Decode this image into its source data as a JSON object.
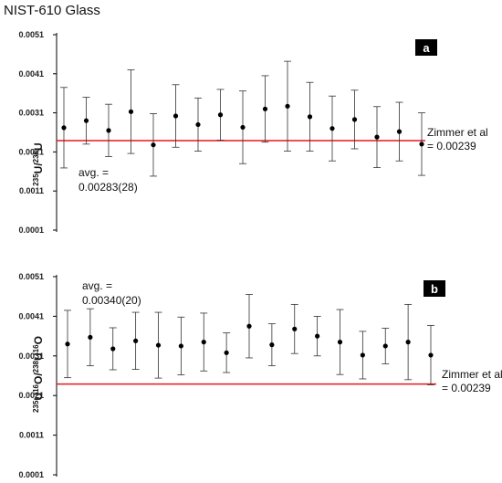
{
  "figure_title": "NIST-610 Glass",
  "chart_data": [
    {
      "panel_label": "a",
      "type": "scatter",
      "ylabel": {
        "sup1": "235",
        "base1": "U/",
        "sup2": "238",
        "base2": "U"
      },
      "ylim": [
        0.0001,
        0.0051
      ],
      "yticks": [
        "0.0001",
        "0.0011",
        "0.0021",
        "0.0031",
        "0.0041",
        "0.0051"
      ],
      "x": [
        1,
        2,
        3,
        4,
        5,
        6,
        7,
        8,
        9,
        10,
        11,
        12,
        13,
        14,
        15,
        16,
        17
      ],
      "y": [
        0.00272,
        0.0029,
        0.00265,
        0.00313,
        0.00228,
        0.00302,
        0.0028,
        0.00305,
        0.00273,
        0.0032,
        0.00327,
        0.003,
        0.0027,
        0.00293,
        0.00248,
        0.00262,
        0.0023
      ],
      "error": [
        0.00103,
        0.0006,
        0.00067,
        0.00107,
        0.0008,
        0.0008,
        0.00068,
        0.00065,
        0.00093,
        0.00085,
        0.00115,
        0.00088,
        0.00083,
        0.00075,
        0.00078,
        0.00075,
        0.0008
      ],
      "reference_line": {
        "value": 0.00239,
        "color": "#e8161e",
        "label_line1": "Zimmer et al",
        "label_line2": "= 0.00239"
      },
      "average_label": {
        "line1": "avg. =",
        "line2": "0.00283(28)"
      },
      "marker_color": "#000000"
    },
    {
      "panel_label": "b",
      "type": "scatter",
      "ylabel": {
        "sup1": "235",
        "base1": "U",
        "sup2": "16",
        "base2": "O/",
        "sup3": "238",
        "base3": "U",
        "sup4": "16",
        "base4": "O"
      },
      "ylim": [
        0.0001,
        0.0051
      ],
      "yticks": [
        "0.0001",
        "0.0011",
        "0.0021",
        "0.0031",
        "0.0041",
        "0.0051"
      ],
      "x": [
        1,
        2,
        3,
        4,
        5,
        6,
        7,
        8,
        9,
        10,
        11,
        12,
        13,
        14,
        15,
        16,
        17
      ],
      "y": [
        0.0034,
        0.00357,
        0.00328,
        0.00348,
        0.00337,
        0.00335,
        0.00345,
        0.00318,
        0.00385,
        0.00338,
        0.00378,
        0.0036,
        0.00345,
        0.00312,
        0.00335,
        0.00345,
        0.00312
      ],
      "error": [
        0.00085,
        0.00072,
        0.00053,
        0.00072,
        0.00083,
        0.00073,
        0.00073,
        0.0005,
        0.0008,
        0.00053,
        0.00062,
        0.0005,
        0.00082,
        0.0006,
        0.00045,
        0.00095,
        0.00075
      ],
      "reference_line": {
        "value": 0.00239,
        "color": "#e8161e",
        "label_line1": "Zimmer et al",
        "label_line2": "= 0.00239"
      },
      "average_label": {
        "line1": "avg. =",
        "line2": "0.00340(20)"
      },
      "marker_color": "#000000"
    }
  ]
}
